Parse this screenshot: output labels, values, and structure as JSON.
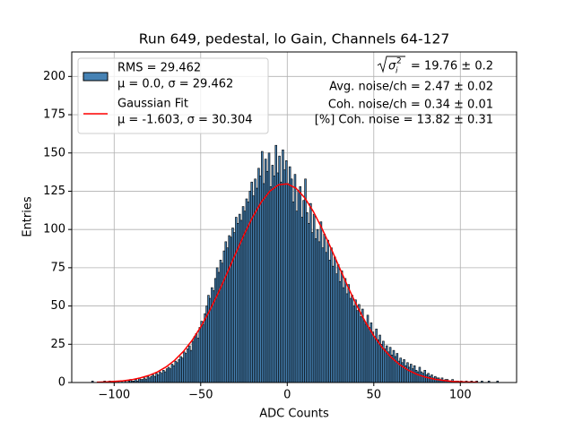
{
  "chart_data": {
    "type": "histogram",
    "title": "Run 649, pedestal, lo Gain, Channels 64-127",
    "xlabel": "ADC Counts",
    "ylabel": "Entries",
    "xlim": [
      -124.5,
      132.5
    ],
    "ylim": [
      0,
      216
    ],
    "xticks": [
      {
        "value": -100,
        "label": "−100"
      },
      {
        "value": -50,
        "label": "−50"
      },
      0,
      50,
      100
    ],
    "yticks": [
      0,
      25,
      50,
      75,
      100,
      125,
      150,
      175,
      200
    ],
    "grid": true,
    "legend": "upper left",
    "name": "RMS = 29.462",
    "detail": "μ = 0.0, σ = 29.462",
    "color": "#4682b4",
    "edgecolor": "#000000",
    "bins": [
      -113,
      -112,
      -111,
      -110,
      -109,
      -108,
      -107,
      -106,
      -105,
      -104,
      -103,
      -102,
      -101,
      -100,
      -99,
      -98,
      -97,
      -96,
      -95,
      -94,
      -93,
      -92,
      -91,
      -90,
      -89,
      -88,
      -87,
      -86,
      -85,
      -84,
      -83,
      -82,
      -81,
      -80,
      -79,
      -78,
      -77,
      -76,
      -75,
      -74,
      -73,
      -72,
      -71,
      -70,
      -69,
      -68,
      -67,
      -66,
      -65,
      -64,
      -63,
      -62,
      -61,
      -60,
      -59,
      -58,
      -57,
      -56,
      -55,
      -54,
      -53,
      -52,
      -51,
      -50,
      -49,
      -48,
      -47,
      -46,
      -45,
      -44,
      -43,
      -42,
      -41,
      -40,
      -39,
      -38,
      -37,
      -36,
      -35,
      -34,
      -33,
      -32,
      -31,
      -30,
      -29,
      -28,
      -27,
      -26,
      -25,
      -24,
      -23,
      -22,
      -21,
      -20,
      -19,
      -18,
      -17,
      -16,
      -15,
      -14,
      -13,
      -12,
      -11,
      -10,
      -9,
      -8,
      -7,
      -6,
      -5,
      -4,
      -3,
      -2,
      -1,
      0,
      1,
      2,
      3,
      4,
      5,
      6,
      7,
      8,
      9,
      10,
      11,
      12,
      13,
      14,
      15,
      16,
      17,
      18,
      19,
      20,
      21,
      22,
      23,
      24,
      25,
      26,
      27,
      28,
      29,
      30,
      31,
      32,
      33,
      34,
      35,
      36,
      37,
      38,
      39,
      40,
      41,
      42,
      43,
      44,
      45,
      46,
      47,
      48,
      49,
      50,
      51,
      52,
      53,
      54,
      55,
      56,
      57,
      58,
      59,
      60,
      61,
      62,
      63,
      64,
      65,
      66,
      67,
      68,
      69,
      70,
      71,
      72,
      73,
      74,
      75,
      76,
      77,
      78,
      79,
      80,
      81,
      82,
      83,
      84,
      85,
      86,
      87,
      88,
      89,
      90,
      91,
      92,
      93,
      94,
      95,
      96,
      97,
      98,
      99,
      100,
      101,
      102,
      103,
      104,
      105,
      106,
      107,
      108,
      109,
      110,
      111,
      112,
      113,
      114,
      115,
      116,
      117,
      118,
      119,
      120,
      121,
      122
    ],
    "values": [
      1,
      0,
      0,
      0,
      0,
      0,
      0,
      1,
      0,
      0,
      1,
      0,
      0,
      1,
      0,
      1,
      0,
      1,
      0,
      1,
      0,
      1,
      2,
      1,
      1,
      2,
      1,
      3,
      2,
      2,
      3,
      2,
      4,
      3,
      4,
      5,
      4,
      6,
      5,
      7,
      6,
      8,
      7,
      9,
      10,
      9,
      12,
      11,
      14,
      13,
      15,
      17,
      16,
      20,
      19,
      22,
      24,
      21,
      27,
      30,
      32,
      29,
      36,
      40,
      38,
      45,
      50,
      57,
      55,
      62,
      60,
      68,
      75,
      72,
      80,
      78,
      86,
      92,
      88,
      96,
      95,
      101,
      98,
      108,
      104,
      110,
      106,
      115,
      112,
      120,
      118,
      125,
      131,
      122,
      133,
      127,
      140,
      135,
      151,
      130,
      146,
      138,
      150,
      128,
      142,
      135,
      155,
      137,
      148,
      131,
      152,
      139,
      145,
      130,
      141,
      133,
      118,
      136,
      112,
      125,
      128,
      108,
      119,
      133,
      111,
      104,
      117,
      98,
      110,
      94,
      100,
      92,
      105,
      88,
      97,
      85,
      93,
      80,
      88,
      76,
      82,
      71,
      77,
      66,
      73,
      62,
      68,
      58,
      64,
      55,
      57,
      50,
      54,
      47,
      51,
      43,
      48,
      40,
      38,
      44,
      36,
      39,
      33,
      30,
      35,
      28,
      31,
      25,
      27,
      22,
      24,
      20,
      23,
      18,
      21,
      17,
      19,
      14,
      16,
      13,
      15,
      11,
      13,
      10,
      12,
      9,
      11,
      8,
      7,
      10,
      7,
      6,
      8,
      5,
      6,
      4,
      5,
      3,
      4,
      3,
      3,
      2,
      3,
      1,
      2,
      2,
      1,
      1,
      2,
      0,
      1,
      1,
      0,
      1,
      0,
      0,
      1,
      0,
      0,
      1,
      0,
      0,
      1,
      0,
      0,
      1,
      0,
      0,
      0,
      1,
      0,
      0,
      0,
      0,
      1
    ],
    "fit": {
      "name": "Gaussian Fit",
      "detail": "μ = -1.603, σ = 30.304",
      "color": "#ff0000",
      "x": [
        -110,
        -105,
        -100,
        -95,
        -90,
        -85,
        -80,
        -75,
        -70,
        -65,
        -60,
        -55,
        -50,
        -45,
        -40,
        -35,
        -30,
        -25,
        -20,
        -15,
        -10,
        -5,
        0,
        5,
        10,
        15,
        20,
        25,
        30,
        35,
        40,
        45,
        50,
        55,
        60,
        65,
        70,
        75,
        80,
        85,
        90,
        95,
        100,
        105,
        110
      ],
      "values": [
        0.2,
        0.4,
        0.7,
        1.1,
        1.8,
        3.0,
        4.6,
        6.9,
        10.2,
        14.6,
        20.3,
        27.5,
        36.3,
        46.6,
        58.2,
        70.8,
        83.8,
        96.5,
        108.1,
        117.9,
        125.1,
        129.2,
        129.8,
        127.0,
        120.8,
        111.9,
        100.8,
        88.4,
        75.5,
        62.7,
        50.7,
        39.9,
        30.5,
        22.7,
        16.5,
        11.6,
        8.0,
        5.3,
        3.5,
        2.2,
        1.4,
        0.8,
        0.5,
        0.3,
        0.2
      ]
    },
    "annotations": [
      {
        "symbol": "σ",
        "sub": "i",
        "sup": "2",
        "text": "= 19.76 ± 0.2"
      },
      "Avg. noise/ch = 2.47 ± 0.02",
      "Coh. noise/ch = 0.34 ± 0.01",
      "[%] Coh. noise = 13.82 ± 0.31"
    ]
  }
}
